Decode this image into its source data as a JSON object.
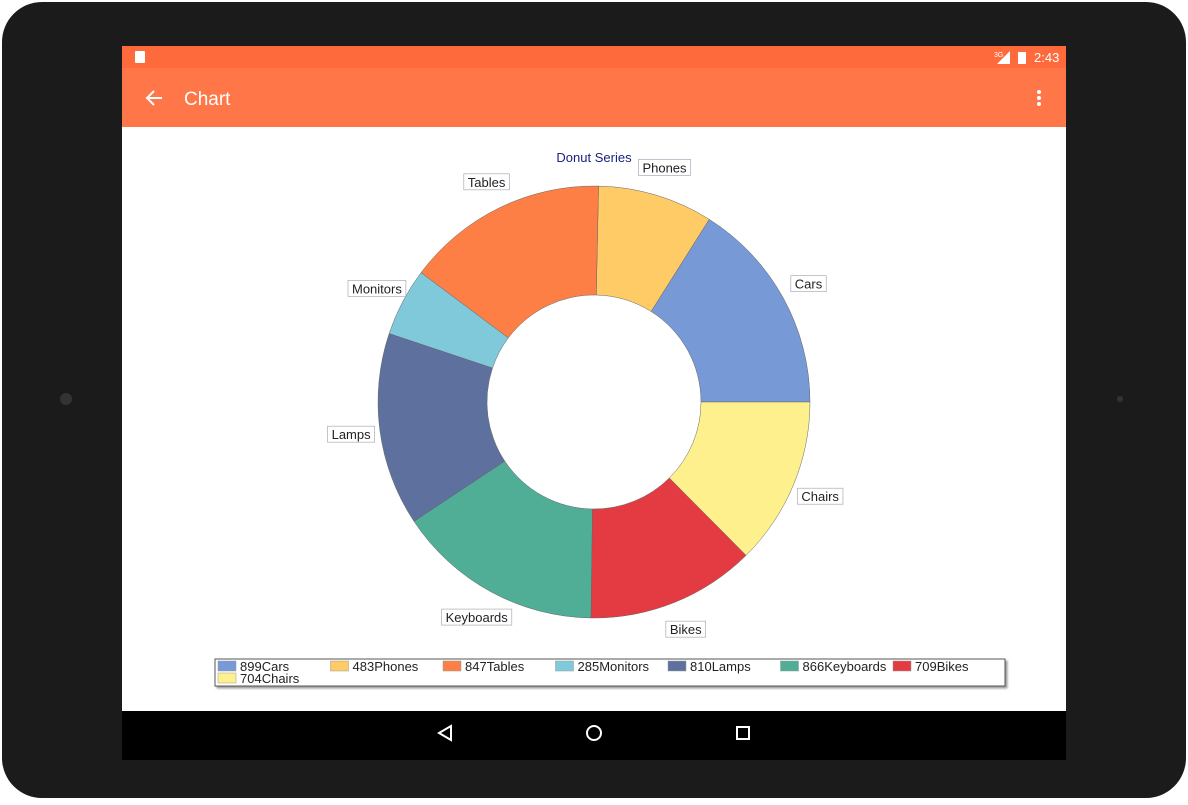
{
  "status_bar": {
    "network": "3G",
    "time": "2:43"
  },
  "app_bar": {
    "title": "Chart"
  },
  "chart_data": {
    "type": "donut",
    "title": "Donut Series",
    "categories": [
      "Cars",
      "Phones",
      "Tables",
      "Monitors",
      "Lamps",
      "Keyboards",
      "Bikes",
      "Chairs"
    ],
    "values": [
      899,
      483,
      847,
      285,
      810,
      866,
      709,
      704
    ],
    "colors": [
      "#7799d5",
      "#fecb66",
      "#fd7f45",
      "#7fc9da",
      "#5e719e",
      "#50ae96",
      "#e43a42",
      "#fef18d"
    ]
  }
}
